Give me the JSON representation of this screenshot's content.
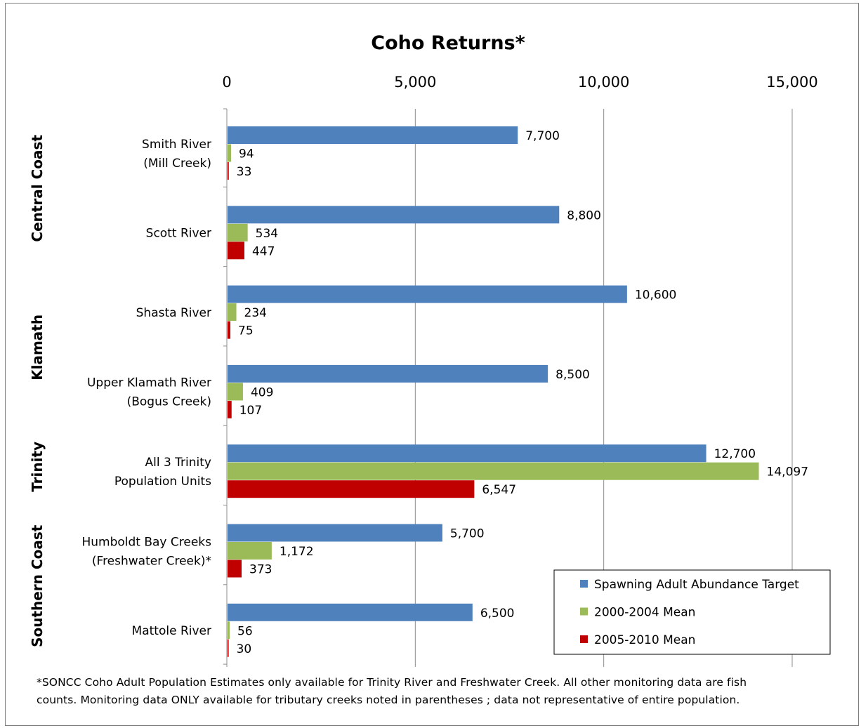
{
  "chart_data": {
    "type": "bar",
    "orientation": "horizontal",
    "title": "Coho Returns*",
    "xlim": [
      0,
      15000
    ],
    "x_ticks": [
      "0",
      "5,000",
      "10,000",
      "15,000"
    ],
    "x_tick_values": [
      0,
      5000,
      10000,
      15000
    ],
    "x_axis_position": "top",
    "grid": true,
    "legend_position": "bottom-right",
    "categories": [
      [
        "Smith River",
        "(Mill Creek)"
      ],
      [
        "Scott River"
      ],
      [
        "Shasta River"
      ],
      [
        "Upper Klamath River",
        "(Bogus Creek)"
      ],
      [
        "All 3 Trinity",
        "Population Units"
      ],
      [
        "Humboldt Bay Creeks",
        "(Freshwater Creek)*"
      ],
      [
        "Mattole River"
      ]
    ],
    "groups": [
      {
        "label": "Central Coast",
        "categories": [
          0,
          1
        ]
      },
      {
        "label": "Klamath",
        "categories": [
          2,
          3
        ]
      },
      {
        "label": "Trinity",
        "categories": [
          4
        ]
      },
      {
        "label": "Southern Coast",
        "categories": [
          5,
          6
        ]
      }
    ],
    "series": [
      {
        "name": "Spawning Adult Abundance Target",
        "color": "#4f81bd",
        "values": [
          7700,
          8800,
          10600,
          8500,
          12700,
          5700,
          6500
        ],
        "labels": [
          "7,700",
          "8,800",
          "10,600",
          "8,500",
          "12,700",
          "5,700",
          "6,500"
        ]
      },
      {
        "name": "2000-2004 Mean",
        "color": "#9bbb59",
        "values": [
          94,
          534,
          234,
          409,
          14097,
          1172,
          56
        ],
        "labels": [
          "94",
          "534",
          "234",
          "409",
          "14,097",
          "1,172",
          "56"
        ]
      },
      {
        "name": "2005-2010 Mean",
        "color": "#c00000",
        "values": [
          33,
          447,
          75,
          107,
          6547,
          373,
          30
        ],
        "labels": [
          "33",
          "447",
          "75",
          "107",
          "6,547",
          "373",
          "30"
        ]
      }
    ],
    "footnote": [
      "*SONCC Coho Adult Population Estimates only available for Trinity River and Freshwater Creek. All other monitoring data are fish",
      "counts. Monitoring data ONLY available for tributary creeks noted in parentheses ; data not representative of entire population."
    ]
  }
}
